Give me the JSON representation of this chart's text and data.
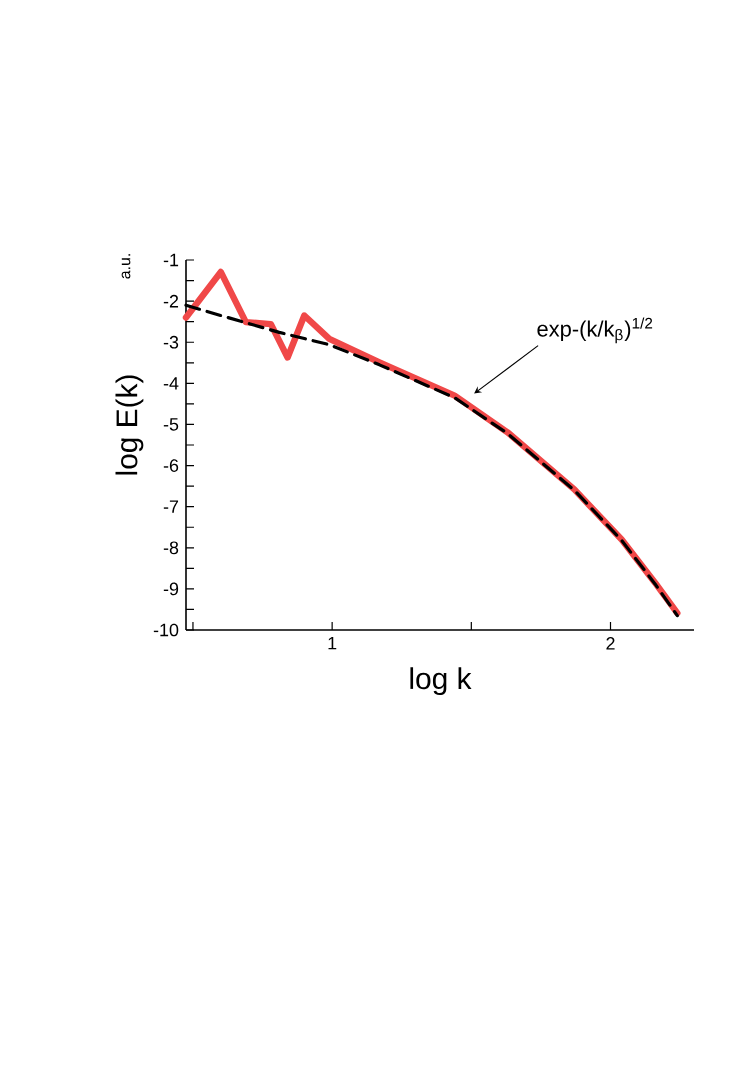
{
  "chart_data": {
    "type": "line",
    "xlabel": "log k",
    "ylabel": "log E(k)",
    "xlim": [
      0.475,
      2.3
    ],
    "ylim": [
      -10,
      -1
    ],
    "xticks": [
      {
        "value": 0.5,
        "label": null
      },
      1,
      {
        "value": 1.5,
        "label": null
      },
      2
    ],
    "yticks": [
      -1,
      {
        "value": -1.5,
        "label": null
      },
      -2,
      {
        "value": -2.5,
        "label": null
      },
      -3,
      {
        "value": -3.5,
        "label": null
      },
      -4,
      {
        "value": -4.5,
        "label": null
      },
      -5,
      {
        "value": -5.5,
        "label": null
      },
      -6,
      {
        "value": -6.5,
        "label": null
      },
      -7,
      {
        "value": -7.5,
        "label": null
      },
      -8,
      {
        "value": -8.5,
        "label": null
      },
      -9,
      {
        "value": -9.5,
        "label": null
      },
      -10
    ],
    "marker": "none",
    "series": [
      {
        "color": "#f04848",
        "line_style": "solid",
        "x": [
          0.475,
          0.6,
          0.69,
          0.78,
          0.84,
          0.9,
          0.99,
          1.17,
          1.44,
          1.63,
          1.87,
          2.04,
          2.16,
          2.24
        ],
        "values": [
          -2.4,
          -1.29,
          -2.51,
          -2.56,
          -3.37,
          -2.35,
          -2.92,
          -3.49,
          -4.3,
          -5.19,
          -6.58,
          -7.8,
          -8.85,
          -9.59
        ]
      },
      {
        "color": "#000000",
        "line_style": "dashed",
        "x": [
          0.475,
          0.6,
          0.81,
          0.99,
          1.17,
          1.44,
          1.63,
          1.87,
          2.04,
          2.16,
          2.24
        ],
        "values": [
          -2.1,
          -2.35,
          -2.76,
          -3.06,
          -3.55,
          -4.35,
          -5.22,
          -6.6,
          -7.82,
          -8.88,
          -9.65
        ]
      }
    ],
    "annotations": [
      "a.u.",
      {
        "text": "exp-(k/k$_{β}$)$^{1/2}$",
        "x": 1.51,
        "y": -4.25
      }
    ]
  }
}
